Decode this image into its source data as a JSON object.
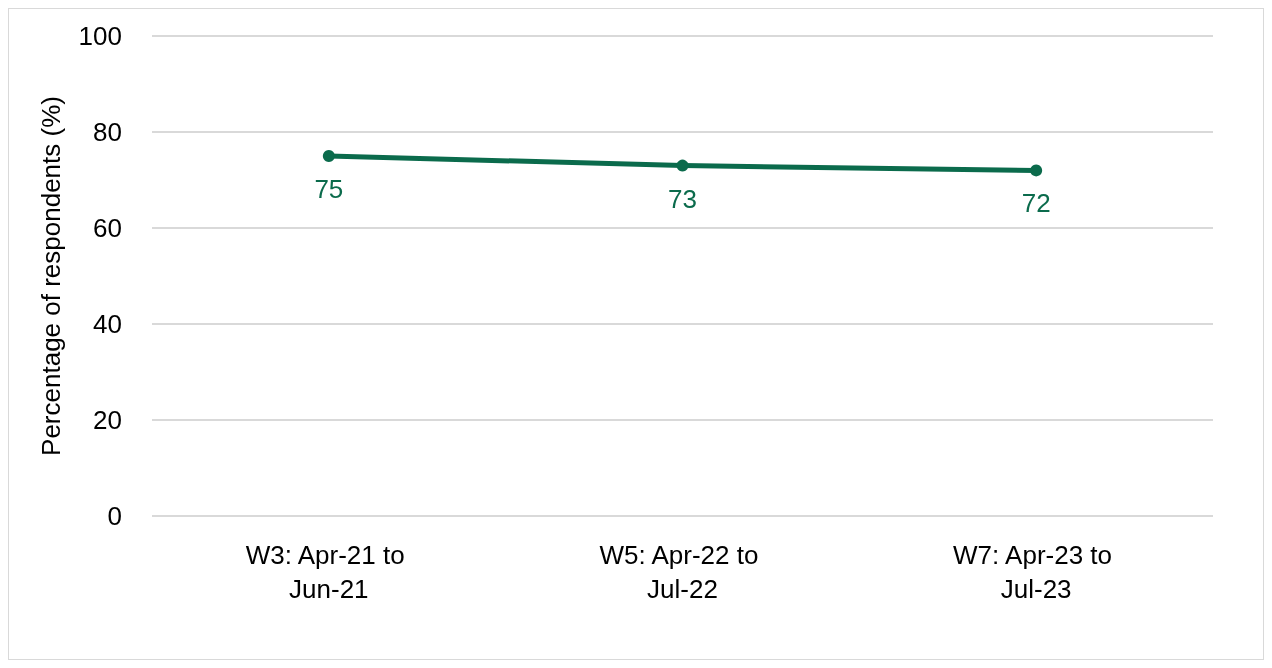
{
  "chart_data": {
    "type": "line",
    "ylabel": "Percentage of respondents (%)",
    "categories": [
      "W3: Apr-21 to Jun-21",
      "W5: Apr-22 to Jul-22",
      "W7: Apr-23 to Jul-23"
    ],
    "series": [
      {
        "color": "#0b6b4c",
        "values": [
          75,
          73,
          72
        ]
      }
    ],
    "ylim": [
      0,
      100
    ],
    "yticks": [
      0,
      20,
      40,
      60,
      80,
      100
    ],
    "grid": "y",
    "marker": "circle",
    "line_style": "solid",
    "data_labels": true
  }
}
